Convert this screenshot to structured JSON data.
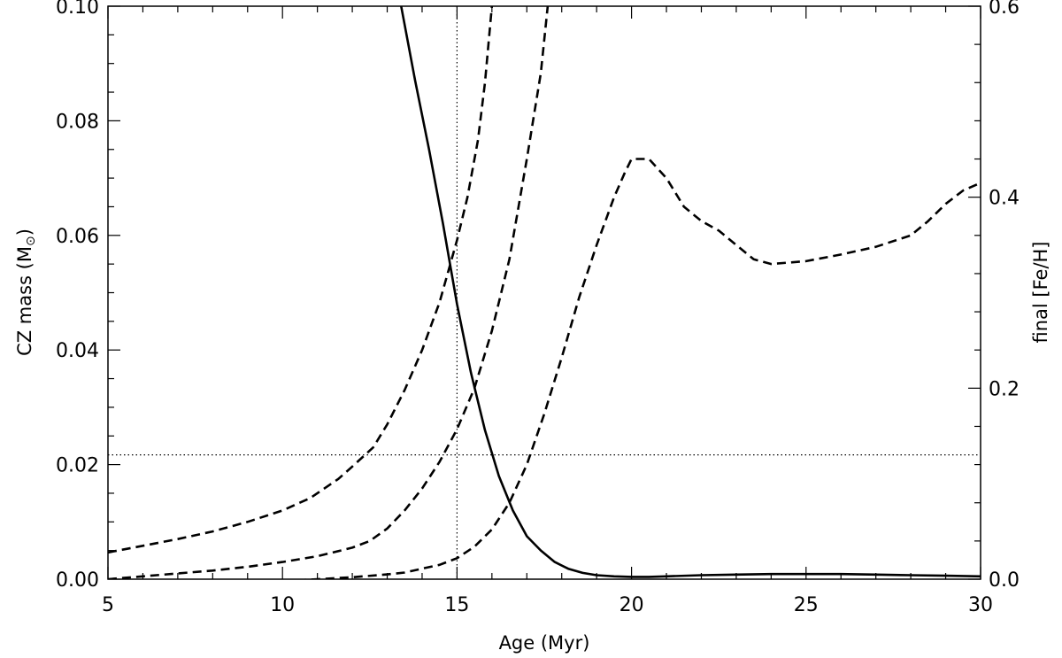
{
  "chart_data": {
    "type": "line",
    "xlabel": "Age (Myr)",
    "ylabel_left": "CZ mass (M",
    "ylabel_left_symbol": "⊙",
    "ylabel_left_suffix": ")",
    "ylabel_right": "final [Fe/H]",
    "xlim": [
      5,
      30
    ],
    "ylim_left": [
      0.0,
      0.1
    ],
    "ylim_right": [
      0.0,
      0.6
    ],
    "x_ticks": [
      "5",
      "10",
      "15",
      "20",
      "25",
      "30"
    ],
    "y_left_ticks": [
      "0.00",
      "0.02",
      "0.04",
      "0.06",
      "0.08",
      "0.10"
    ],
    "y_right_ticks": [
      "0.0",
      "0.2",
      "0.4",
      "0.6"
    ],
    "grid": false,
    "reference_lines": {
      "vertical_x": 15,
      "horizontal_y_left": 0.0217
    },
    "series": [
      {
        "axis": "left",
        "style": "solid",
        "x": [
          13.4,
          13.8,
          14.2,
          14.6,
          15.0,
          15.4,
          15.8,
          16.2,
          16.6,
          17.0,
          17.4,
          17.8,
          18.2,
          18.6,
          19.0,
          19.5,
          20.0,
          20.5,
          21.0,
          22.0,
          23.0,
          24.0,
          25.0,
          26.0,
          27.0,
          28.0,
          29.0,
          30.0
        ],
        "y": [
          0.1,
          0.087,
          0.075,
          0.062,
          0.048,
          0.036,
          0.026,
          0.018,
          0.012,
          0.0075,
          0.005,
          0.003,
          0.0018,
          0.0011,
          0.0007,
          0.0005,
          0.0004,
          0.0004,
          0.0005,
          0.0007,
          0.0008,
          0.0009,
          0.0009,
          0.0009,
          0.0008,
          0.0007,
          0.0006,
          0.0005
        ]
      },
      {
        "axis": "right",
        "style": "dashed",
        "x": [
          5.0,
          6.0,
          7.0,
          8.0,
          9.0,
          10.0,
          10.8,
          11.6,
          12.0,
          12.6,
          13.0,
          13.5,
          14.0,
          14.5,
          15.0,
          15.3,
          15.6,
          15.8,
          16.0
        ],
        "y": [
          0.028,
          0.035,
          0.042,
          0.05,
          0.06,
          0.072,
          0.085,
          0.105,
          0.118,
          0.138,
          0.162,
          0.198,
          0.24,
          0.29,
          0.355,
          0.4,
          0.46,
          0.52,
          0.6
        ]
      },
      {
        "axis": "right",
        "style": "dashed",
        "x": [
          5.0,
          6.0,
          7.0,
          8.0,
          9.0,
          10.0,
          11.0,
          12.0,
          12.5,
          13.0,
          13.5,
          14.0,
          14.5,
          15.0,
          15.5,
          16.0,
          16.5,
          17.0,
          17.4,
          17.6
        ],
        "y": [
          0.0,
          0.003,
          0.006,
          0.009,
          0.013,
          0.018,
          0.024,
          0.033,
          0.04,
          0.053,
          0.072,
          0.095,
          0.123,
          0.157,
          0.2,
          0.26,
          0.335,
          0.44,
          0.53,
          0.6
        ]
      },
      {
        "axis": "right",
        "style": "dashed",
        "x": [
          8.8,
          10.0,
          11.0,
          12.0,
          13.0,
          13.5,
          14.0,
          14.5,
          15.0,
          15.5,
          16.0,
          16.5,
          17.0,
          17.5,
          18.0,
          18.5,
          19.0,
          19.5,
          19.8,
          20.0,
          20.5,
          21.0,
          21.5,
          22.0,
          22.5,
          23.0,
          23.5,
          24.0,
          25.0,
          26.0,
          27.0,
          28.0,
          28.5,
          29.0,
          29.5,
          30.0
        ],
        "y": [
          -0.003,
          -0.002,
          0.0,
          0.002,
          0.005,
          0.007,
          0.011,
          0.015,
          0.022,
          0.034,
          0.052,
          0.08,
          0.12,
          0.173,
          0.232,
          0.295,
          0.35,
          0.4,
          0.425,
          0.44,
          0.44,
          0.42,
          0.39,
          0.375,
          0.365,
          0.35,
          0.335,
          0.33,
          0.333,
          0.34,
          0.348,
          0.36,
          0.375,
          0.393,
          0.407,
          0.415
        ]
      }
    ]
  }
}
